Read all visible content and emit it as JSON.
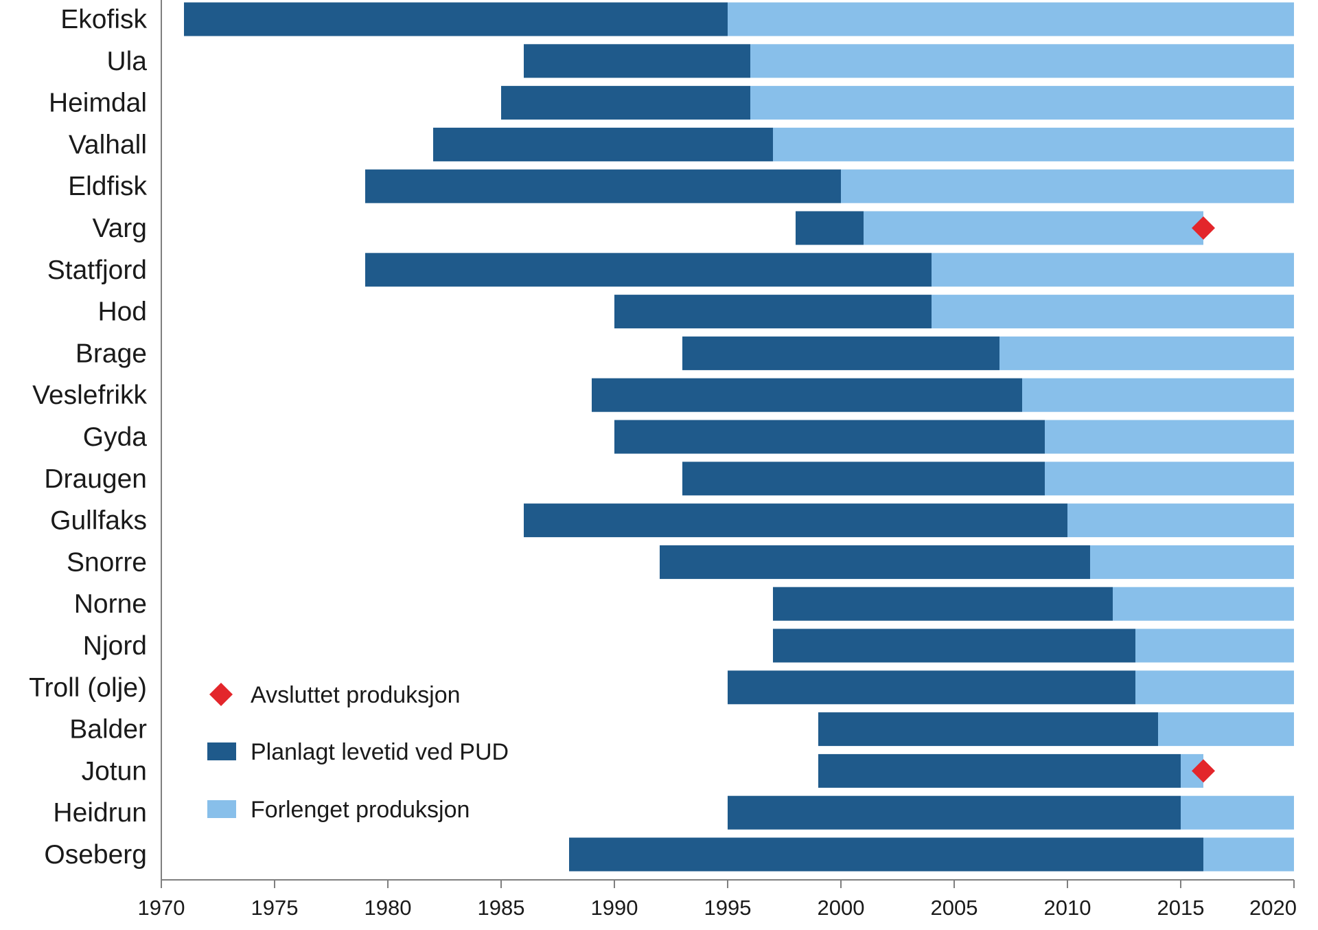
{
  "chart_data": {
    "type": "bar",
    "orientation": "horizontal",
    "stacked": true,
    "xlim": [
      1970,
      2020
    ],
    "xticks": [
      1970,
      1975,
      1980,
      1985,
      1990,
      1995,
      2000,
      2005,
      2010,
      2015,
      2020
    ],
    "grid": false,
    "legend_placement": "bottom-left, inside plot",
    "colors": {
      "planned": "#1f5a8b",
      "extended": "#88bfea",
      "ended": "#e3262b",
      "axis": "#7f7f7f"
    },
    "legend": [
      {
        "key": "ended",
        "label": "Avsluttet produksjon",
        "marker": "diamond"
      },
      {
        "key": "planned",
        "label": "Planlagt levetid ved PUD",
        "marker": "square"
      },
      {
        "key": "extended",
        "label": "Forlenget produksjon",
        "marker": "square"
      }
    ],
    "fields": [
      {
        "name": "Ekofisk",
        "start": 1971,
        "planned_end": 1995,
        "extended_end": 2020,
        "ended": null
      },
      {
        "name": "Ula",
        "start": 1986,
        "planned_end": 1996,
        "extended_end": 2020,
        "ended": null
      },
      {
        "name": "Heimdal",
        "start": 1985,
        "planned_end": 1996,
        "extended_end": 2020,
        "ended": null
      },
      {
        "name": "Valhall",
        "start": 1982,
        "planned_end": 1997,
        "extended_end": 2020,
        "ended": null
      },
      {
        "name": "Eldfisk",
        "start": 1979,
        "planned_end": 2000,
        "extended_end": 2020,
        "ended": null
      },
      {
        "name": "Varg",
        "start": 1998,
        "planned_end": 2001,
        "extended_end": 2016,
        "ended": 2016
      },
      {
        "name": "Statfjord",
        "start": 1979,
        "planned_end": 2004,
        "extended_end": 2020,
        "ended": null
      },
      {
        "name": "Hod",
        "start": 1990,
        "planned_end": 2004,
        "extended_end": 2020,
        "ended": null
      },
      {
        "name": "Brage",
        "start": 1993,
        "planned_end": 2007,
        "extended_end": 2020,
        "ended": null
      },
      {
        "name": "Veslefrikk",
        "start": 1989,
        "planned_end": 2008,
        "extended_end": 2020,
        "ended": null
      },
      {
        "name": "Gyda",
        "start": 1990,
        "planned_end": 2009,
        "extended_end": 2020,
        "ended": null
      },
      {
        "name": "Draugen",
        "start": 1993,
        "planned_end": 2009,
        "extended_end": 2020,
        "ended": null
      },
      {
        "name": "Gullfaks",
        "start": 1986,
        "planned_end": 2010,
        "extended_end": 2020,
        "ended": null
      },
      {
        "name": "Snorre",
        "start": 1992,
        "planned_end": 2011,
        "extended_end": 2020,
        "ended": null
      },
      {
        "name": "Norne",
        "start": 1997,
        "planned_end": 2012,
        "extended_end": 2020,
        "ended": null
      },
      {
        "name": "Njord",
        "start": 1997,
        "planned_end": 2013,
        "extended_end": 2020,
        "ended": null
      },
      {
        "name": "Troll (olje)",
        "start": 1995,
        "planned_end": 2013,
        "extended_end": 2020,
        "ended": null
      },
      {
        "name": "Balder",
        "start": 1999,
        "planned_end": 2014,
        "extended_end": 2020,
        "ended": null
      },
      {
        "name": "Jotun",
        "start": 1999,
        "planned_end": 2015,
        "extended_end": 2016,
        "ended": 2016
      },
      {
        "name": "Heidrun",
        "start": 1995,
        "planned_end": 2015,
        "extended_end": 2020,
        "ended": null
      },
      {
        "name": "Oseberg",
        "start": 1988,
        "planned_end": 2016,
        "extended_end": 2020,
        "ended": null
      }
    ]
  }
}
